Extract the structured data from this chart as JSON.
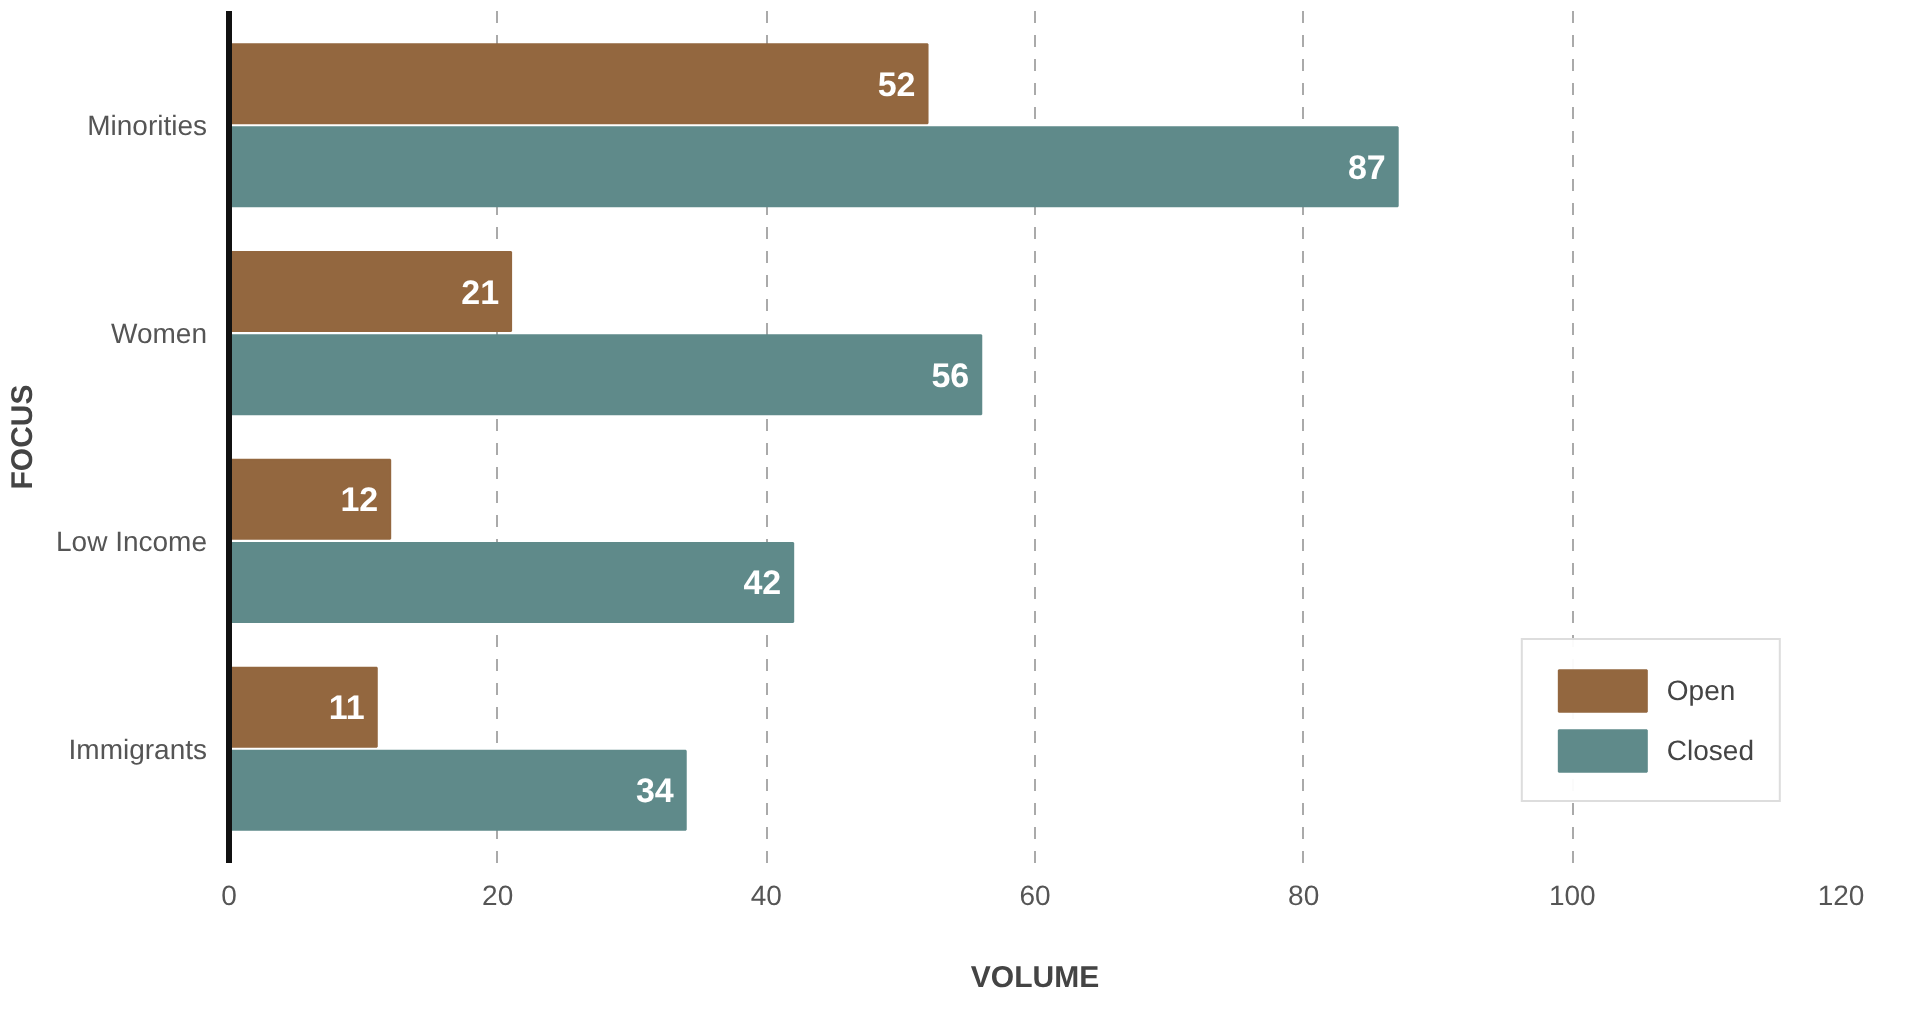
{
  "chart_data": {
    "type": "bar",
    "orientation": "horizontal",
    "xlabel": "VOLUME",
    "ylabel": "FOCUS",
    "categories": [
      "Minorities",
      "Women",
      "Low Income",
      "Immigrants"
    ],
    "series": [
      {
        "name": "Open",
        "color": "#93673f",
        "values": [
          52,
          21,
          12,
          11
        ]
      },
      {
        "name": "Closed",
        "color": "#5f8a8a",
        "values": [
          87,
          56,
          42,
          34
        ]
      }
    ],
    "xlim": [
      0,
      120
    ],
    "xticks": [
      0,
      20,
      40,
      60,
      80,
      100,
      120
    ],
    "grid": "x",
    "legend": "bottom right",
    "data_labels": true
  }
}
